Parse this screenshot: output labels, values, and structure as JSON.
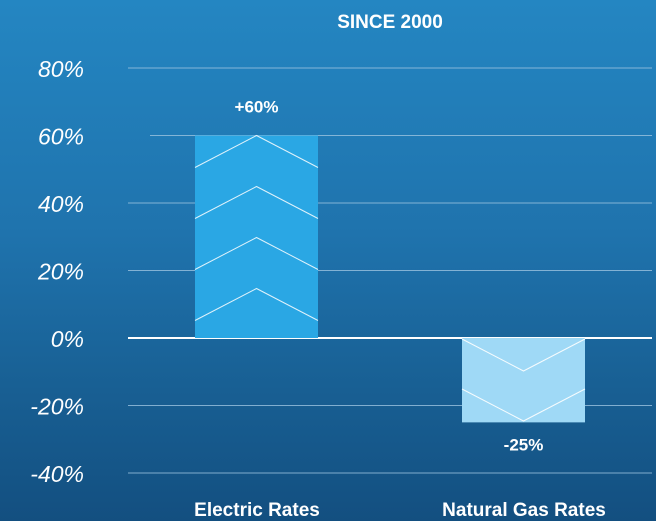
{
  "chart_data": {
    "type": "bar",
    "title": "SINCE 2000",
    "categories": [
      "Electric Rates",
      "Natural Gas Rates"
    ],
    "values": [
      60,
      -25
    ],
    "value_labels": [
      "+60%",
      "-25%"
    ],
    "y_ticks": [
      "80%",
      "60%",
      "40%",
      "20%",
      "0%",
      "-20%",
      "-40%"
    ],
    "y_tick_values": [
      80,
      60,
      40,
      20,
      0,
      -20,
      -40
    ],
    "ylim": [
      -40,
      80
    ],
    "grid": true,
    "legend": "none",
    "colors": {
      "bars": [
        "#2aa7e4",
        "#9fd9f6"
      ],
      "positive_label": "#ffffff",
      "negative_label": "#ffffff",
      "grid": "#9cc4e0",
      "zero_line": "#ffffff"
    }
  }
}
